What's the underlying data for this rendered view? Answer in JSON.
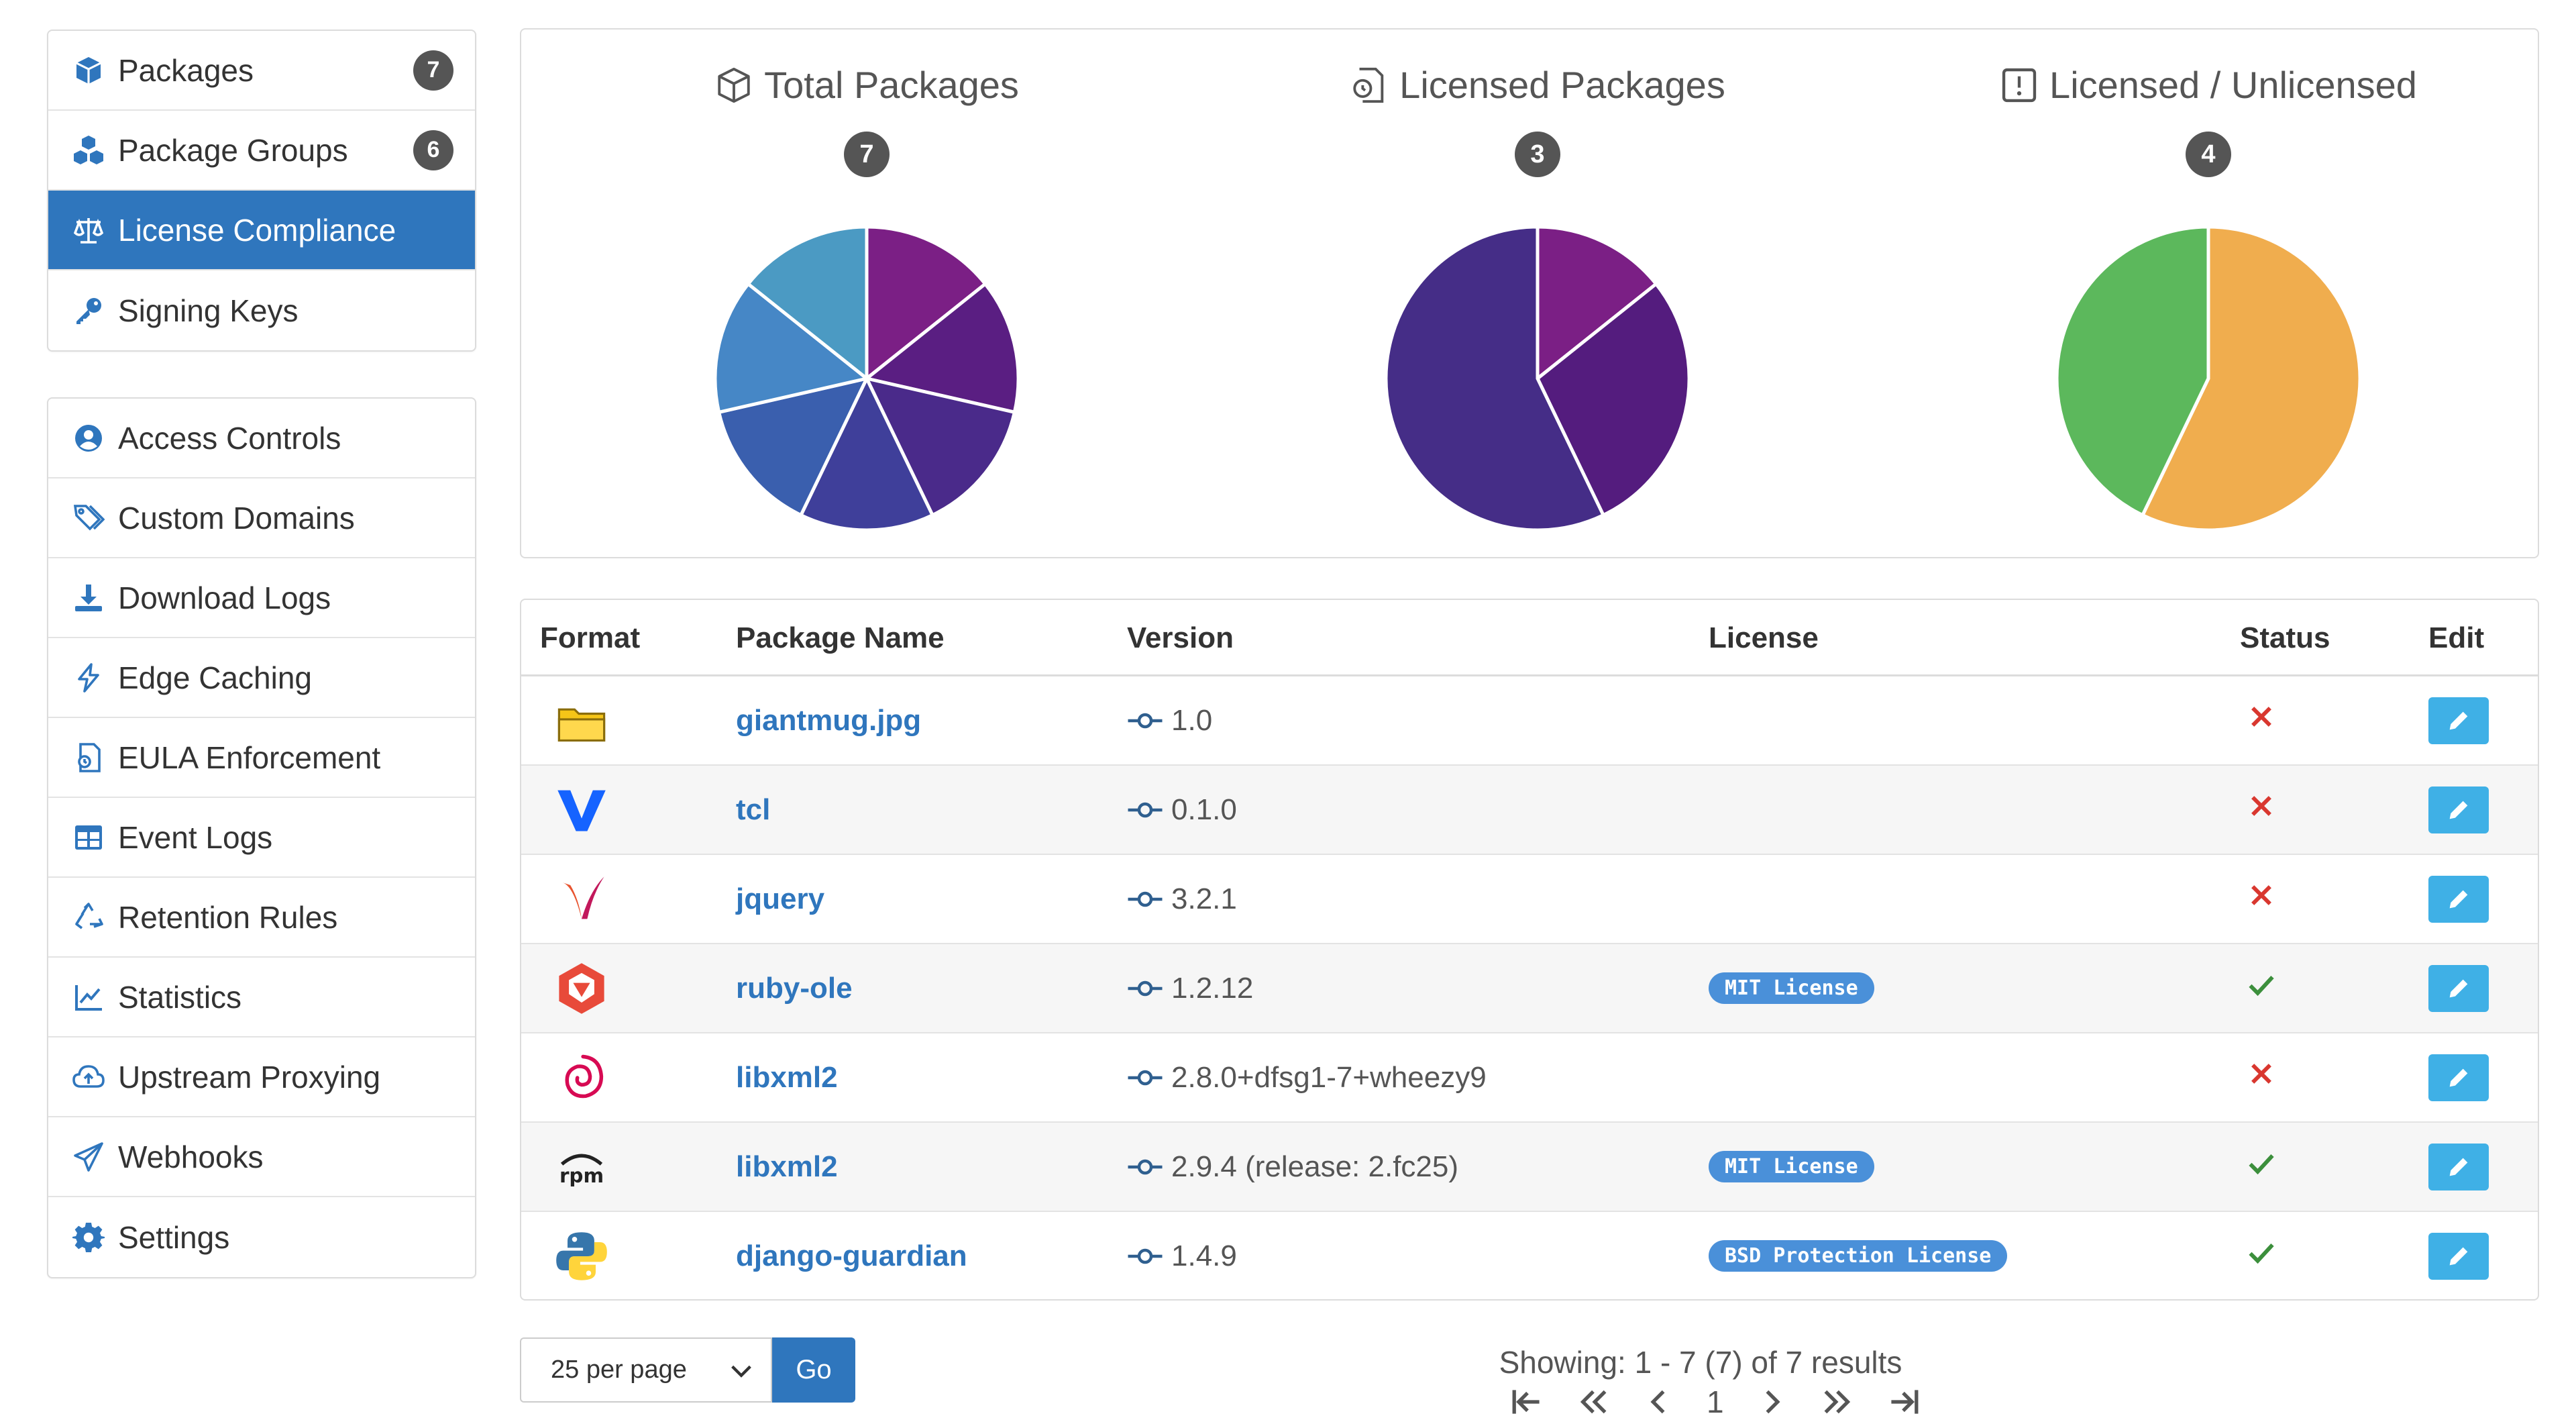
{
  "sidebar": {
    "group1": [
      {
        "label": "Packages",
        "icon": "cube-icon",
        "badge": "7"
      },
      {
        "label": "Package Groups",
        "icon": "cubes-icon",
        "badge": "6"
      },
      {
        "label": "License Compliance",
        "icon": "balance-scale-icon",
        "active": true
      },
      {
        "label": "Signing Keys",
        "icon": "key-icon"
      }
    ],
    "group2": [
      {
        "label": "Access Controls",
        "icon": "user-circle-icon"
      },
      {
        "label": "Custom Domains",
        "icon": "tags-icon"
      },
      {
        "label": "Download Logs",
        "icon": "download-icon"
      },
      {
        "label": "Edge Caching",
        "icon": "bolt-icon"
      },
      {
        "label": "EULA Enforcement",
        "icon": "file-contract-icon"
      },
      {
        "label": "Event Logs",
        "icon": "table-icon"
      },
      {
        "label": "Retention Rules",
        "icon": "recycle-icon"
      },
      {
        "label": "Statistics",
        "icon": "line-chart-icon"
      },
      {
        "label": "Upstream Proxying",
        "icon": "cloud-upload-icon"
      },
      {
        "label": "Webhooks",
        "icon": "paper-plane-icon"
      },
      {
        "label": "Settings",
        "icon": "gear-icon"
      }
    ]
  },
  "charts": [
    {
      "title": "Total Packages",
      "count": "7",
      "icon": "cube-icon",
      "slices": [
        {
          "value": 1,
          "color": "#7b1f85"
        },
        {
          "value": 1,
          "color": "#5a1e82"
        },
        {
          "value": 1,
          "color": "#4a2a8a"
        },
        {
          "value": 1,
          "color": "#3f3f9a"
        },
        {
          "value": 1,
          "color": "#3a5fae"
        },
        {
          "value": 1,
          "color": "#4687c6"
        },
        {
          "value": 1,
          "color": "#4b9ac3"
        }
      ]
    },
    {
      "title": "Licensed Packages",
      "count": "3",
      "icon": "license-icon",
      "slices": [
        {
          "value": 1,
          "color": "#7b1f85"
        },
        {
          "value": 2,
          "color": "#541c7e"
        },
        {
          "value": 4,
          "color": "#452d87"
        }
      ]
    },
    {
      "title": "Licensed / Unlicensed",
      "count": "4",
      "icon": "exclamation-square-icon",
      "slices": [
        {
          "value": 4,
          "color": "#f0ad4e"
        },
        {
          "value": 3,
          "color": "#5cb85c"
        }
      ]
    }
  ],
  "table": {
    "headers": {
      "format": "Format",
      "name": "Package Name",
      "version": "Version",
      "license": "License",
      "status": "Status",
      "edit": "Edit"
    },
    "rows": [
      {
        "format_icon": "raw-folder-icon",
        "name": "giantmug.jpg",
        "version": "1.0",
        "license": "",
        "status": "unlicensed"
      },
      {
        "format_icon": "vagrant-icon",
        "name": "tcl",
        "version": "0.1.0",
        "license": "",
        "status": "unlicensed"
      },
      {
        "format_icon": "maven-icon",
        "name": "jquery",
        "version": "3.2.1",
        "license": "",
        "status": "unlicensed"
      },
      {
        "format_icon": "ruby-gem-icon",
        "name": "ruby-ole",
        "version": "1.2.12",
        "license": "MIT License",
        "status": "licensed"
      },
      {
        "format_icon": "debian-icon",
        "name": "libxml2",
        "version": "2.8.0+dfsg1-7+wheezy9",
        "license": "",
        "status": "unlicensed"
      },
      {
        "format_icon": "rpm-icon",
        "name": "libxml2",
        "version": "2.9.4 (release: 2.fc25)",
        "license": "MIT License",
        "status": "licensed"
      },
      {
        "format_icon": "python-icon",
        "name": "django-guardian",
        "version": "1.4.9",
        "license": "BSD Protection License",
        "status": "licensed"
      }
    ]
  },
  "footer": {
    "per_page": "25 per page",
    "go": "Go",
    "showing": "Showing: 1 - 7 (7) of 7 results",
    "current_page": "1"
  }
}
